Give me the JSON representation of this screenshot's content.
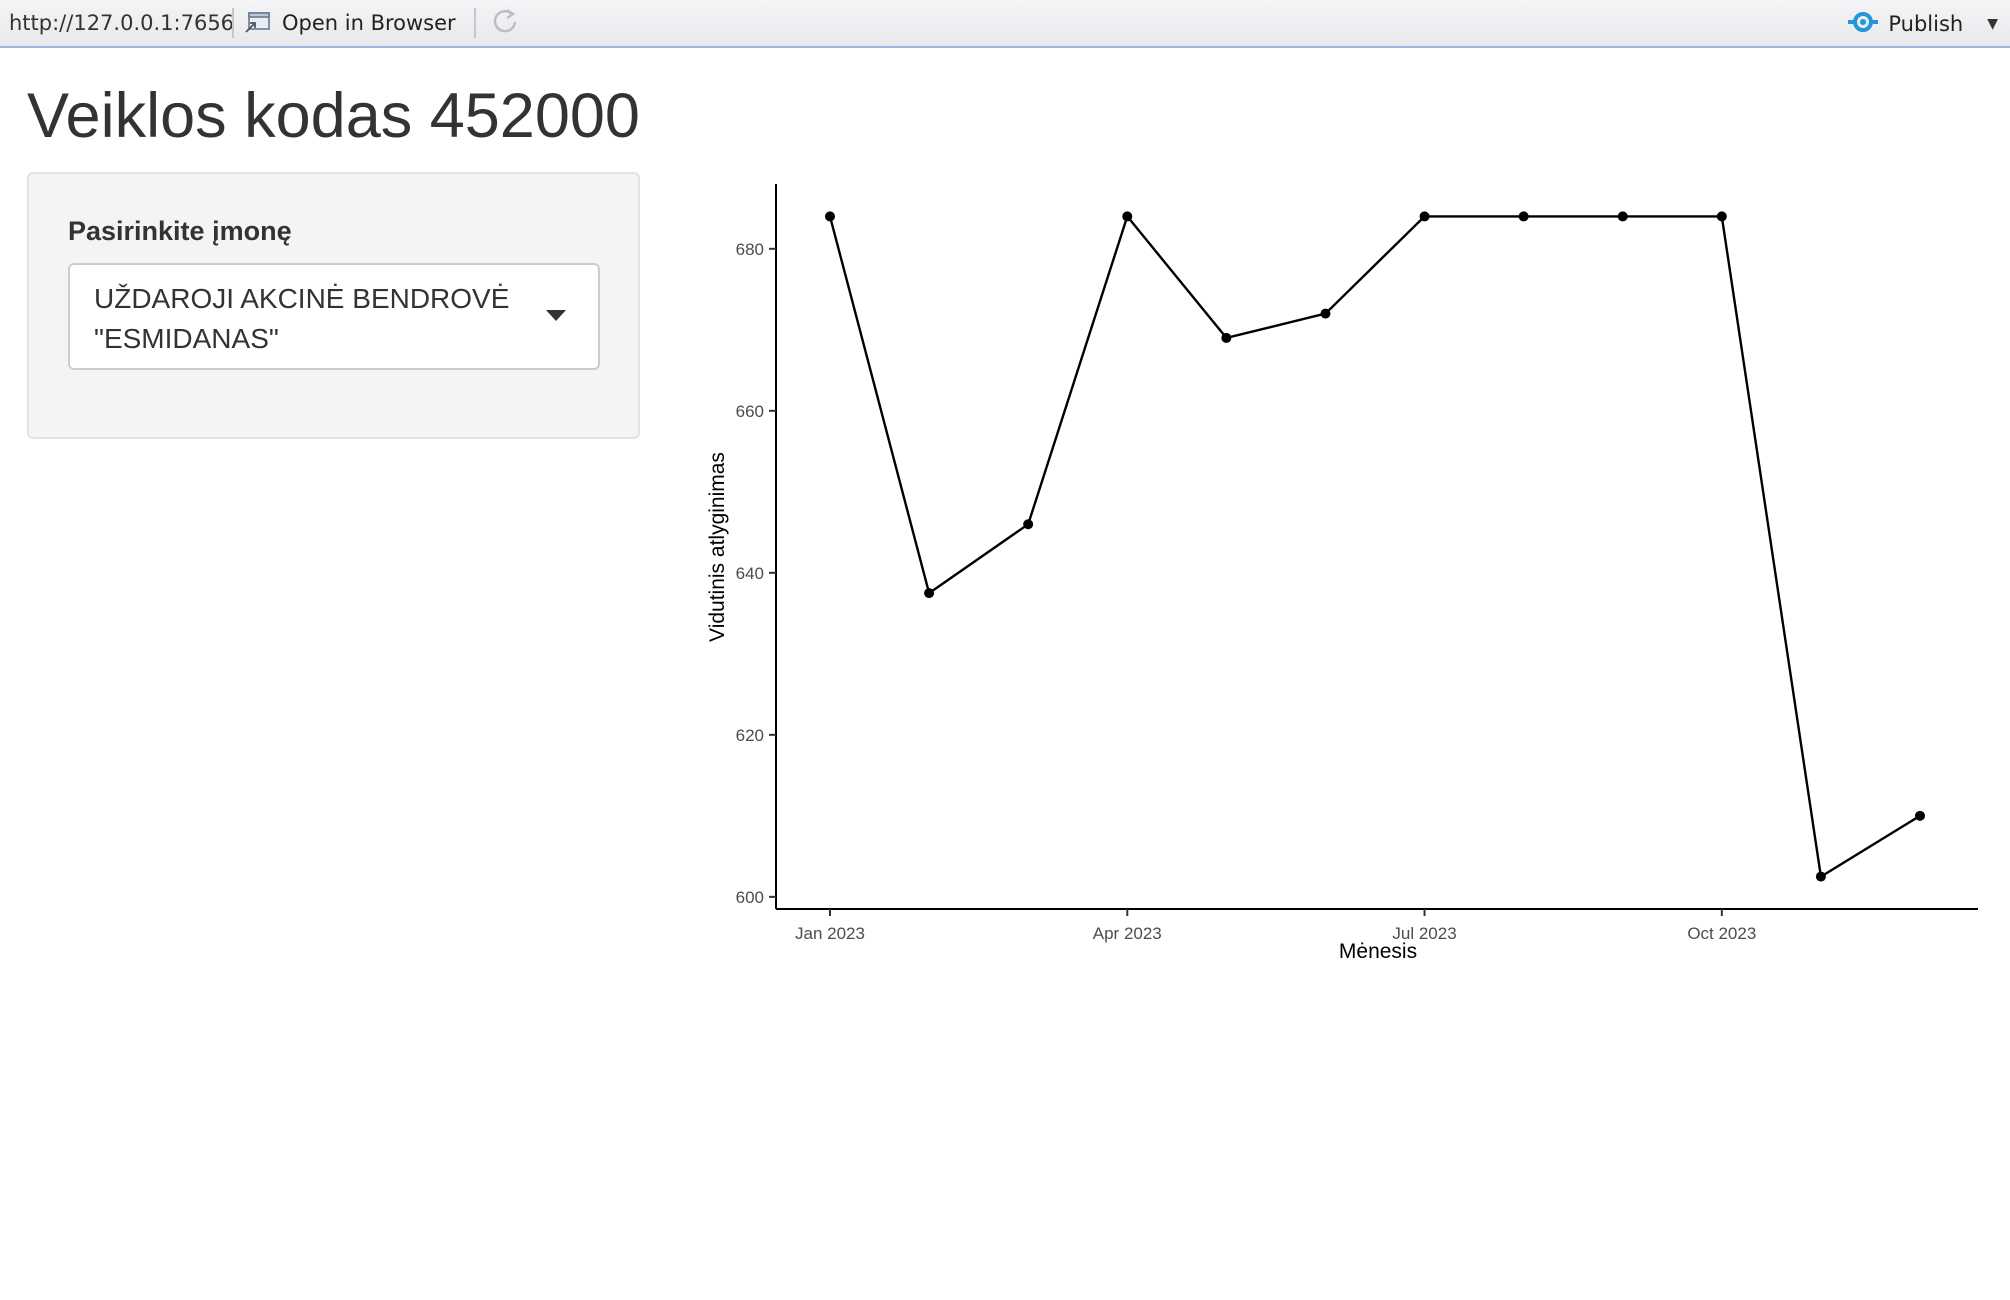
{
  "toolbar": {
    "url": "http://127.0.0.1:7656",
    "open_in_browser": "Open in Browser",
    "publish": "Publish",
    "icons": {
      "open": "open-in-browser-icon",
      "refresh": "refresh-icon",
      "publish": "publish-icon",
      "caret": "chevron-down-icon"
    },
    "publish_icon_color": "#2196d9"
  },
  "page": {
    "title": "Veiklos kodas 452000"
  },
  "sidebar": {
    "label": "Pasirinkite įmonę",
    "selected_company": "UŽDAROJI AKCINĖ BENDROVĖ \"ESMIDANAS\""
  },
  "chart_data": {
    "type": "line",
    "xlabel": "Mėnesis",
    "ylabel": "Vidutinis atlyginimas",
    "x": [
      "2023-01",
      "2023-02",
      "2023-03",
      "2023-04",
      "2023-05",
      "2023-06",
      "2023-07",
      "2023-08",
      "2023-09",
      "2023-10",
      "2023-11",
      "2023-12"
    ],
    "values": [
      684,
      637.5,
      646,
      684,
      669,
      672,
      684,
      684,
      684,
      684,
      602.5,
      610
    ],
    "x_ticks": [
      "Jan 2023",
      "Apr 2023",
      "Jul 2023",
      "Oct 2023"
    ],
    "y_ticks": [
      600,
      620,
      640,
      660,
      680
    ],
    "ylim": [
      598.5,
      688
    ],
    "grid": false,
    "line_color": "#000000",
    "marker": "point"
  }
}
